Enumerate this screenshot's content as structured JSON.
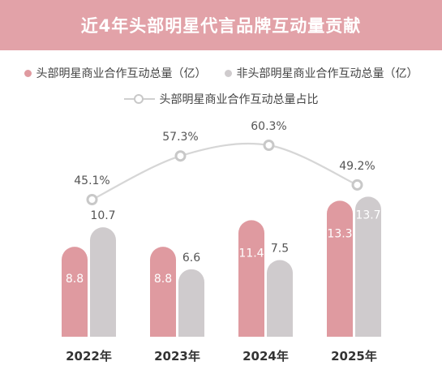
{
  "header": {
    "title": "近4年头部明星代言品牌互动量贡献"
  },
  "legend": {
    "head": "头部明星商业合作互动总量（亿）",
    "nonhead": "非头部明星商业合作互动总量（亿）",
    "ratio": "头部明星商业合作互动总量占比"
  },
  "colors": {
    "head": "#df9aa0",
    "nonhead": "#cfcbcd",
    "line": "#d6d6d6",
    "header": "#e2a2a8"
  },
  "chart_data": {
    "type": "bar",
    "categories": [
      "2022年",
      "2023年",
      "2024年",
      "2025年"
    ],
    "series": [
      {
        "name": "头部明星商业合作互动总量（亿）",
        "values": [
          8.8,
          8.8,
          11.4,
          13.3
        ]
      },
      {
        "name": "非头部明星商业合作互动总量（亿）",
        "values": [
          10.7,
          6.6,
          7.5,
          13.7
        ]
      }
    ],
    "line_series": {
      "name": "头部明星商业合作互动总量占比",
      "values": [
        45.1,
        57.3,
        60.3,
        49.2
      ],
      "labels": [
        "45.1%",
        "57.3%",
        "60.3%",
        "49.2%"
      ]
    },
    "bar_labels": {
      "head": [
        "8.8",
        "8.8",
        "11.4",
        "13.3"
      ],
      "nonhead": [
        "10.7",
        "6.6",
        "7.5",
        "13.7"
      ]
    }
  }
}
